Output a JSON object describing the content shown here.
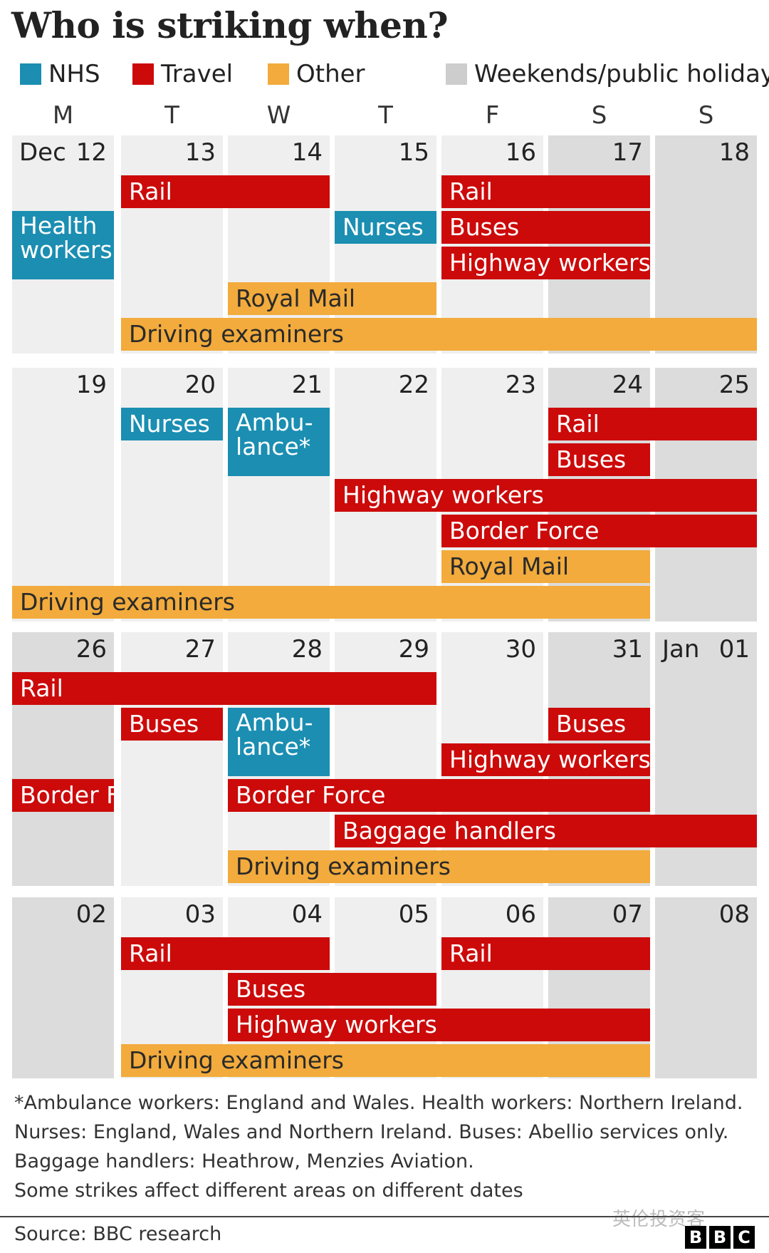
{
  "title": "Who is striking when?",
  "legend": [
    {
      "label": "NHS",
      "color": "#1b8eb2"
    },
    {
      "label": "Travel",
      "color": "#cc0a0a"
    },
    {
      "label": "Other",
      "color": "#f2ab3c"
    },
    {
      "label": "Weekends/public holidays",
      "color": "#cdcdcd"
    }
  ],
  "colors": {
    "nhs": "#1b8eb2",
    "travel": "#cc0a0a",
    "other": "#f2ab3c",
    "weekday_cell": "#efefef",
    "holiday_cell": "#dcdcdc"
  },
  "day_headers": [
    "M",
    "T",
    "W",
    "T",
    "F",
    "S",
    "S"
  ],
  "chart_data": {
    "type": "table",
    "title": "Who is striking when?",
    "weeks": [
      {
        "days": [
          "12",
          "13",
          "14",
          "15",
          "16",
          "17",
          "18"
        ],
        "month_labels": {
          "0": "Dec"
        },
        "holidays": [
          5,
          6
        ]
      },
      {
        "days": [
          "19",
          "20",
          "21",
          "22",
          "23",
          "24",
          "25"
        ],
        "month_labels": {},
        "holidays": [
          5,
          6
        ]
      },
      {
        "days": [
          "26",
          "27",
          "28",
          "29",
          "30",
          "31",
          "01"
        ],
        "month_labels": {
          "6": "Jan"
        },
        "holidays": [
          0,
          5,
          6
        ]
      },
      {
        "days": [
          "02",
          "03",
          "04",
          "05",
          "06",
          "07",
          "08"
        ],
        "month_labels": {},
        "holidays": [
          0,
          5,
          6
        ]
      }
    ],
    "strikes": [
      {
        "label": "Rail",
        "category": "travel",
        "week": 0,
        "start_day": 1,
        "end_day": 2,
        "lane": 0
      },
      {
        "label": "Rail",
        "category": "travel",
        "week": 0,
        "start_day": 4,
        "end_day": 5,
        "lane": 0
      },
      {
        "label": "Health workers",
        "category": "nhs",
        "week": 0,
        "start_day": 0,
        "end_day": 0,
        "lane": 1,
        "rows": 2
      },
      {
        "label": "Nurses",
        "category": "nhs",
        "week": 0,
        "start_day": 3,
        "end_day": 3,
        "lane": 1
      },
      {
        "label": "Buses",
        "category": "travel",
        "week": 0,
        "start_day": 4,
        "end_day": 5,
        "lane": 1
      },
      {
        "label": "Highway workers",
        "category": "travel",
        "week": 0,
        "start_day": 4,
        "end_day": 5,
        "lane": 2
      },
      {
        "label": "Royal Mail",
        "category": "other",
        "week": 0,
        "start_day": 2,
        "end_day": 3,
        "lane": 3
      },
      {
        "label": "Driving examiners",
        "category": "other",
        "week": 0,
        "start_day": 1,
        "end_day": 6,
        "lane": 4
      },
      {
        "label": "Nurses",
        "category": "nhs",
        "week": 1,
        "start_day": 1,
        "end_day": 1,
        "lane": 0
      },
      {
        "label": "Ambu-lance*",
        "category": "nhs",
        "week": 1,
        "start_day": 2,
        "end_day": 2,
        "lane": 0,
        "rows": 2
      },
      {
        "label": "Rail",
        "category": "travel",
        "week": 1,
        "start_day": 5,
        "end_day": 6,
        "lane": 0
      },
      {
        "label": "Buses",
        "category": "travel",
        "week": 1,
        "start_day": 5,
        "end_day": 5,
        "lane": 1
      },
      {
        "label": "Highway workers",
        "category": "travel",
        "week": 1,
        "start_day": 3,
        "end_day": 6,
        "lane": 2
      },
      {
        "label": "Border Force",
        "category": "travel",
        "week": 1,
        "start_day": 4,
        "end_day": 6,
        "lane": 3
      },
      {
        "label": "Royal Mail",
        "category": "other",
        "week": 1,
        "start_day": 4,
        "end_day": 5,
        "lane": 4
      },
      {
        "label": "Driving examiners",
        "category": "other",
        "week": 1,
        "start_day": 0,
        "end_day": 5,
        "lane": 5
      },
      {
        "label": "Rail",
        "category": "travel",
        "week": 2,
        "start_day": 0,
        "end_day": 3,
        "lane": 0
      },
      {
        "label": "Buses",
        "category": "travel",
        "week": 2,
        "start_day": 1,
        "end_day": 1,
        "lane": 1
      },
      {
        "label": "Ambu-lance*",
        "category": "nhs",
        "week": 2,
        "start_day": 2,
        "end_day": 2,
        "lane": 1,
        "rows": 2
      },
      {
        "label": "Buses",
        "category": "travel",
        "week": 2,
        "start_day": 5,
        "end_day": 5,
        "lane": 1
      },
      {
        "label": "Highway workers",
        "category": "travel",
        "week": 2,
        "start_day": 4,
        "end_day": 5,
        "lane": 2
      },
      {
        "label": "Border F.",
        "category": "travel",
        "week": 2,
        "start_day": 0,
        "end_day": 0,
        "lane": 3
      },
      {
        "label": "Border Force",
        "category": "travel",
        "week": 2,
        "start_day": 2,
        "end_day": 5,
        "lane": 3
      },
      {
        "label": "Baggage handlers",
        "category": "travel",
        "week": 2,
        "start_day": 3,
        "end_day": 6,
        "lane": 4
      },
      {
        "label": "Driving examiners",
        "category": "other",
        "week": 2,
        "start_day": 2,
        "end_day": 5,
        "lane": 5
      },
      {
        "label": "Rail",
        "category": "travel",
        "week": 3,
        "start_day": 1,
        "end_day": 2,
        "lane": 0
      },
      {
        "label": "Rail",
        "category": "travel",
        "week": 3,
        "start_day": 4,
        "end_day": 5,
        "lane": 0
      },
      {
        "label": "Buses",
        "category": "travel",
        "week": 3,
        "start_day": 2,
        "end_day": 3,
        "lane": 1
      },
      {
        "label": "Highway workers",
        "category": "travel",
        "week": 3,
        "start_day": 2,
        "end_day": 5,
        "lane": 2
      },
      {
        "label": "Driving examiners",
        "category": "other",
        "week": 3,
        "start_day": 1,
        "end_day": 5,
        "lane": 3
      }
    ]
  },
  "notes": [
    "*Ambulance workers: England and Wales. Health workers: Northern Ireland.",
    "Nurses: England, Wales and Northern Ireland. Buses: Abellio services only.",
    "Baggage handlers: Heathrow, Menzies Aviation.",
    "Some strikes affect different areas on different dates"
  ],
  "source": "Source: BBC research",
  "watermark": "英伦投资客",
  "logo": [
    "B",
    "B",
    "C"
  ]
}
